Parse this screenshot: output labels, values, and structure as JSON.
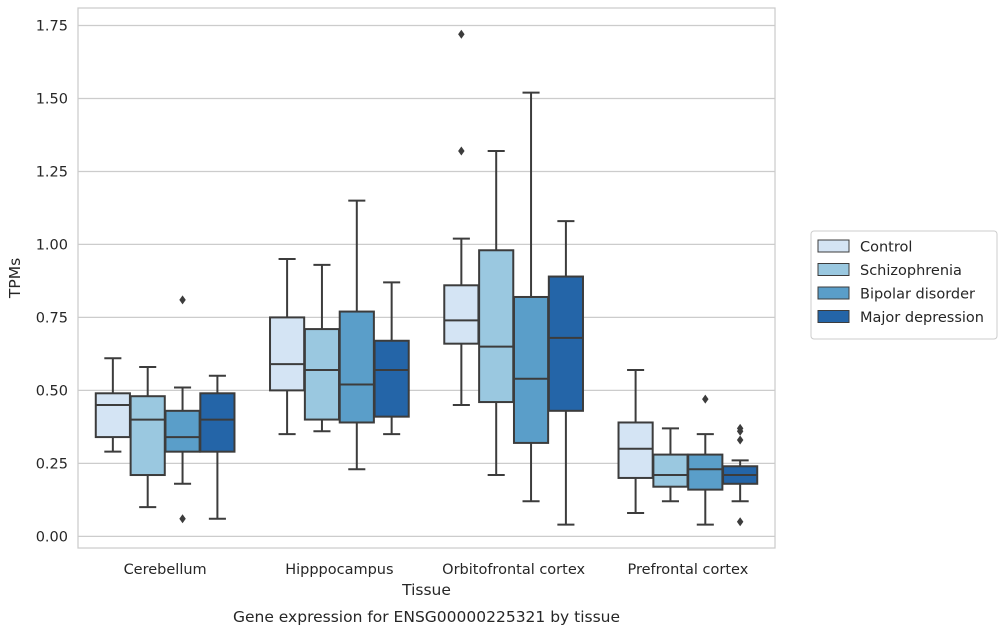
{
  "chart_data": {
    "type": "box",
    "caption": "Gene expression for ENSG00000225321 by tissue",
    "xlabel": "Tissue",
    "ylabel": "TPMs",
    "ylim": [
      -0.04,
      1.81
    ],
    "yticks": [
      "0.00",
      "0.25",
      "0.50",
      "0.75",
      "1.00",
      "1.25",
      "1.50",
      "1.75"
    ],
    "ytick_values": [
      0,
      0.25,
      0.5,
      0.75,
      1.0,
      1.25,
      1.5,
      1.75
    ],
    "grid": true,
    "legend_position": "right",
    "categories": [
      "Cerebellum",
      "Hipppocampus",
      "Orbitofrontal cortex",
      "Prefrontal cortex"
    ],
    "series": [
      {
        "name": "Control",
        "color": "#d4e4f4",
        "boxes": [
          {
            "min": 0.29,
            "q1": 0.34,
            "median": 0.45,
            "q3": 0.49,
            "max": 0.61,
            "outliers": []
          },
          {
            "min": 0.35,
            "q1": 0.5,
            "median": 0.59,
            "q3": 0.75,
            "max": 0.95,
            "outliers": []
          },
          {
            "min": 0.45,
            "q1": 0.66,
            "median": 0.74,
            "q3": 0.86,
            "max": 1.02,
            "outliers": [
              1.32,
              1.72
            ]
          },
          {
            "min": 0.08,
            "q1": 0.2,
            "median": 0.3,
            "q3": 0.39,
            "max": 0.57,
            "outliers": []
          }
        ]
      },
      {
        "name": "Schizophrenia",
        "color": "#9ac8e0",
        "boxes": [
          {
            "min": 0.1,
            "q1": 0.21,
            "median": 0.4,
            "q3": 0.48,
            "max": 0.58,
            "outliers": []
          },
          {
            "min": 0.36,
            "q1": 0.4,
            "median": 0.57,
            "q3": 0.71,
            "max": 0.93,
            "outliers": []
          },
          {
            "min": 0.21,
            "q1": 0.46,
            "median": 0.65,
            "q3": 0.98,
            "max": 1.32,
            "outliers": []
          },
          {
            "min": 0.12,
            "q1": 0.17,
            "median": 0.21,
            "q3": 0.28,
            "max": 0.37,
            "outliers": []
          }
        ]
      },
      {
        "name": "Bipolar disorder",
        "color": "#5a9ec9",
        "boxes": [
          {
            "min": 0.18,
            "q1": 0.29,
            "median": 0.34,
            "q3": 0.43,
            "max": 0.51,
            "outliers": [
              0.06,
              0.81
            ]
          },
          {
            "min": 0.23,
            "q1": 0.39,
            "median": 0.52,
            "q3": 0.77,
            "max": 1.15,
            "outliers": []
          },
          {
            "min": 0.12,
            "q1": 0.32,
            "median": 0.54,
            "q3": 0.82,
            "max": 1.52,
            "outliers": []
          },
          {
            "min": 0.04,
            "q1": 0.16,
            "median": 0.23,
            "q3": 0.28,
            "max": 0.35,
            "outliers": [
              0.47
            ]
          }
        ]
      },
      {
        "name": "Major depression",
        "color": "#2465a8",
        "boxes": [
          {
            "min": 0.06,
            "q1": 0.29,
            "median": 0.4,
            "q3": 0.49,
            "max": 0.55,
            "outliers": []
          },
          {
            "min": 0.35,
            "q1": 0.41,
            "median": 0.57,
            "q3": 0.67,
            "max": 0.87,
            "outliers": []
          },
          {
            "min": 0.04,
            "q1": 0.43,
            "median": 0.68,
            "q3": 0.89,
            "max": 1.08,
            "outliers": []
          },
          {
            "min": 0.12,
            "q1": 0.18,
            "median": 0.21,
            "q3": 0.24,
            "max": 0.26,
            "outliers": [
              0.05,
              0.33,
              0.36,
              0.37
            ]
          }
        ]
      }
    ]
  }
}
